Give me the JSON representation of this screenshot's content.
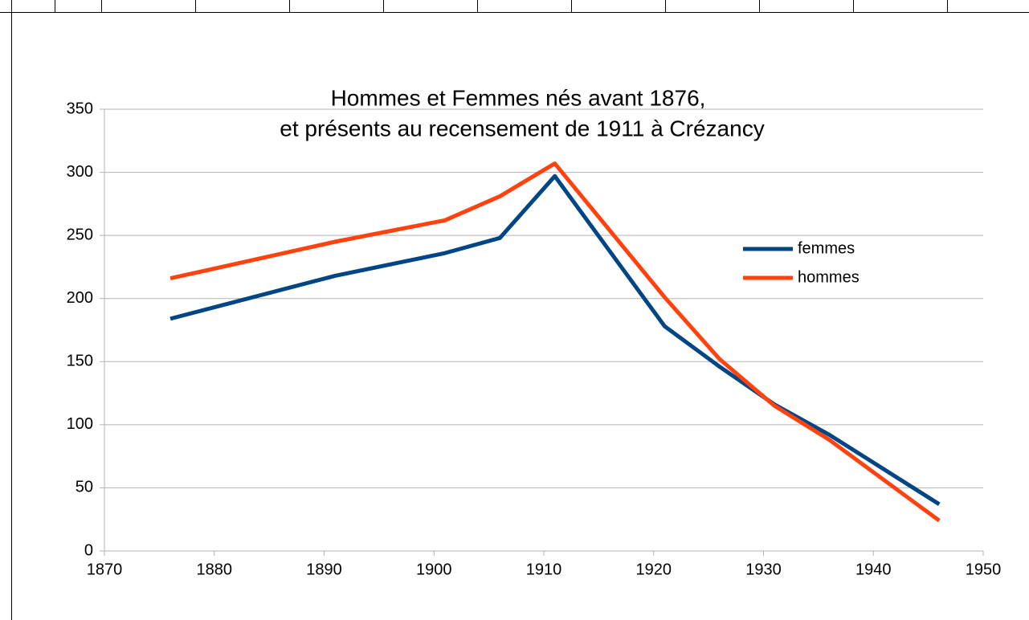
{
  "chart_data": {
    "type": "line",
    "title": [
      "Hommes et Femmes nés avant 1876,",
      "et présents au recensement de 1911 à Crézancy"
    ],
    "x": [
      1876,
      1891,
      1901,
      1906,
      1911,
      1921,
      1926,
      1931,
      1936,
      1946
    ],
    "series": [
      {
        "name": "femmes",
        "color": "#004586",
        "values": [
          184,
          218,
          236,
          248,
          297,
          178,
          146,
          116,
          92,
          37
        ]
      },
      {
        "name": "hommes",
        "color": "#ff420e",
        "values": [
          216,
          245,
          262,
          281,
          307,
          201,
          152,
          115,
          88,
          24
        ]
      }
    ],
    "xlim": [
      1870,
      1950
    ],
    "xticks": [
      1870,
      1880,
      1890,
      1900,
      1910,
      1920,
      1930,
      1940,
      1950
    ],
    "ylim": [
      0,
      350
    ],
    "yticks": [
      0,
      50,
      100,
      150,
      200,
      250,
      300,
      350
    ],
    "grid": true,
    "legend": "right"
  }
}
